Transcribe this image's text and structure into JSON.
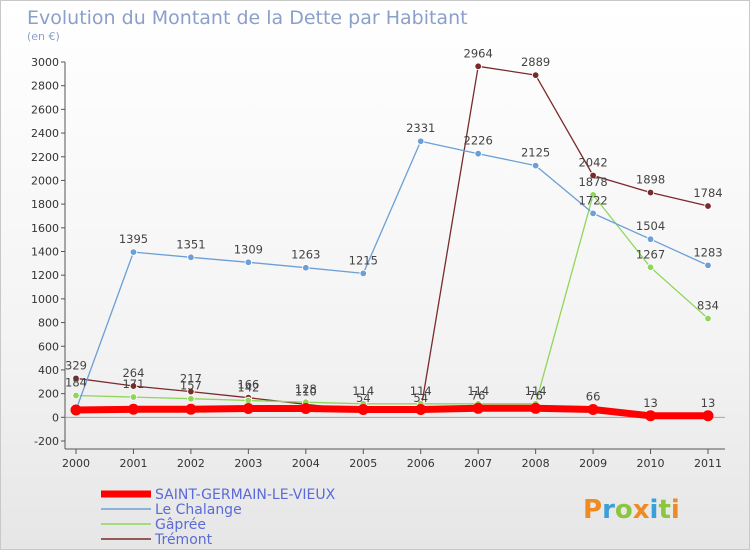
{
  "chart_data": {
    "type": "line",
    "title": "Evolution du Montant de la Dette par Habitant",
    "subtitle": "(en €)",
    "x": [
      "2000",
      "2001",
      "2002",
      "2003",
      "2004",
      "2005",
      "2006",
      "2007",
      "2008",
      "2009",
      "2010",
      "2011"
    ],
    "ylim": [
      -200,
      3000
    ],
    "yticks": [
      -200,
      0,
      200,
      400,
      600,
      800,
      1000,
      1200,
      1400,
      1600,
      1800,
      2000,
      2200,
      2400,
      2600,
      2800,
      3000
    ],
    "grid": false,
    "legend_position": "bottom-left",
    "series": [
      {
        "name": "SAINT-GERMAIN-LE-VIEUX",
        "color": "#ff0000",
        "values": [
          62,
          68,
          68,
          74,
          74,
          66,
          66,
          76,
          76,
          66,
          13,
          13
        ]
      },
      {
        "name": "Le Chalange",
        "color": "#6b9fd6",
        "values": [
          62,
          1395,
          1351,
          1309,
          1263,
          1215,
          2331,
          2226,
          2125,
          1722,
          1504,
          1283
        ]
      },
      {
        "name": "Gâprée",
        "color": "#8fd65a",
        "values": [
          184,
          171,
          157,
          142,
          128,
          114,
          114,
          114,
          114,
          1878,
          1267,
          834
        ]
      },
      {
        "name": "Trémont",
        "color": "#7a2a2a",
        "values": [
          329,
          264,
          217,
          166,
          110,
          54,
          54,
          2964,
          2889,
          2042,
          1898,
          1784
        ]
      }
    ],
    "labels": [
      [
        "",
        "",
        "",
        "",
        "",
        "",
        "",
        "76",
        "76",
        "66",
        "13",
        "13"
      ],
      [
        "",
        "1395",
        "1351",
        "1309",
        "1263",
        "1215",
        "2331",
        "2226",
        "2125",
        "1722",
        "1504",
        "1283"
      ],
      [
        "184",
        "171",
        "157",
        "142",
        "128",
        "114",
        "114",
        "114",
        "114",
        "1878",
        "1267",
        "834"
      ],
      [
        "329",
        "264",
        "217",
        "166",
        "110",
        "54",
        "54",
        "2964",
        "2889",
        "2042",
        "1898",
        "1784"
      ]
    ]
  },
  "logo": {
    "text": "Proxiti"
  }
}
